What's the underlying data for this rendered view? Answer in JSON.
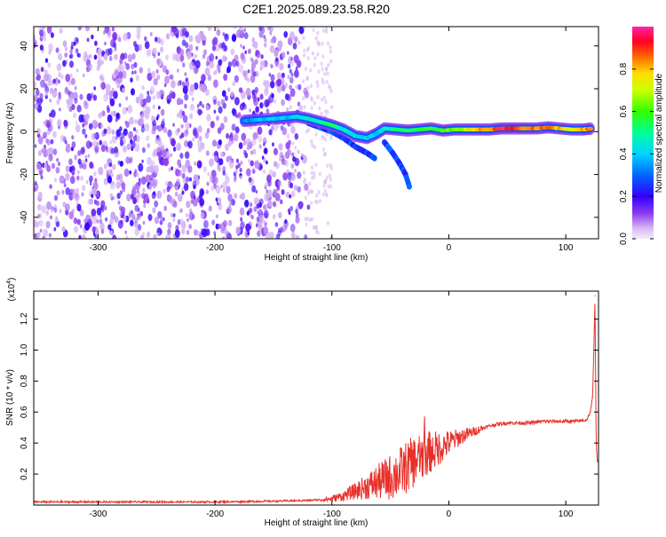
{
  "title": "C2E1.2025.089.23.58.R20",
  "chart_data": [
    {
      "type": "heatmap",
      "xlabel": "Height of straight line (km)",
      "ylabel": "Frequency (Hz)",
      "xlim": [
        -355,
        128
      ],
      "ylim": [
        -50,
        49
      ],
      "xticks": [
        -300,
        -200,
        -100,
        0,
        100
      ],
      "yticks": [
        -40,
        -20,
        0,
        20,
        40
      ],
      "colorbar": {
        "label": "Normalized spectral amplitude",
        "range": [
          0,
          1
        ],
        "ticks": [
          "0.0",
          "0.2",
          "0.4",
          "0.6",
          "0.8"
        ],
        "tick_values": [
          0,
          0.2,
          0.4,
          0.6,
          0.8
        ]
      },
      "ridge": [
        [
          -175,
          5,
          0.35
        ],
        [
          -165,
          5.5,
          0.4
        ],
        [
          -150,
          6,
          0.45
        ],
        [
          -140,
          6.5,
          0.4
        ],
        [
          -130,
          7,
          0.45
        ],
        [
          -120,
          6,
          0.5
        ],
        [
          -110,
          4.5,
          0.5
        ],
        [
          -100,
          3,
          0.55
        ],
        [
          -90,
          1,
          0.5
        ],
        [
          -80,
          -2,
          0.45
        ],
        [
          -70,
          -3,
          0.45
        ],
        [
          -62,
          -1,
          0.4
        ],
        [
          -55,
          1.5,
          0.5
        ],
        [
          -45,
          1,
          0.55
        ],
        [
          -35,
          0.5,
          0.55
        ],
        [
          -25,
          1,
          0.6
        ],
        [
          -15,
          1.5,
          0.6
        ],
        [
          -5,
          0.5,
          0.65
        ],
        [
          5,
          1,
          0.7
        ],
        [
          15,
          1,
          0.75
        ],
        [
          25,
          1,
          0.85
        ],
        [
          35,
          1,
          0.95
        ],
        [
          45,
          1.5,
          1.0
        ],
        [
          55,
          1.5,
          0.98
        ],
        [
          65,
          1.5,
          0.95
        ],
        [
          75,
          1.5,
          0.9
        ],
        [
          85,
          2,
          0.9
        ],
        [
          95,
          1.5,
          0.85
        ],
        [
          105,
          1,
          0.8
        ],
        [
          115,
          1,
          0.85
        ],
        [
          123,
          1.5,
          0.9
        ]
      ],
      "branches": [
        [
          [
            -120,
            4
          ],
          [
            -110,
            2
          ],
          [
            -100,
            0
          ],
          [
            -90,
            -3
          ],
          [
            -80,
            -7
          ],
          [
            -70,
            -10
          ],
          [
            -62,
            -13
          ]
        ],
        [
          [
            -55,
            -5
          ],
          [
            -48,
            -10
          ],
          [
            -42,
            -15
          ],
          [
            -37,
            -20
          ],
          [
            -33,
            -27
          ]
        ]
      ]
    },
    {
      "type": "line",
      "xlabel": "Height of straight line (km)",
      "ylabel": "SNR (10 * v/v)",
      "multiplier": "(x10",
      "multiplier_exp": "4",
      "xlim": [
        -355,
        128
      ],
      "ylim": [
        0,
        1.38
      ],
      "xticks": [
        -300,
        -200,
        -100,
        0,
        100
      ],
      "yticks": [
        0.2,
        0.4,
        0.6,
        0.8,
        1.0,
        1.2
      ],
      "ytick_labels": [
        "0.2",
        "0.4",
        "0.6",
        "0.8",
        "1.0",
        "1.2"
      ],
      "series": [
        {
          "color": "#e8302a",
          "x": [
            -355,
            -300,
            -250,
            -200,
            -150,
            -120,
            -100,
            -90,
            -80,
            -70,
            -60,
            -50,
            -40,
            -30,
            -20,
            -10,
            0,
            10,
            20,
            30,
            40,
            50,
            60,
            70,
            80,
            90,
            100,
            110,
            118,
            121,
            123,
            124,
            125,
            126,
            127
          ],
          "y": [
            0.02,
            0.02,
            0.02,
            0.02,
            0.025,
            0.03,
            0.04,
            0.06,
            0.09,
            0.12,
            0.15,
            0.18,
            0.22,
            0.28,
            0.33,
            0.36,
            0.4,
            0.44,
            0.47,
            0.5,
            0.52,
            0.53,
            0.53,
            0.53,
            0.54,
            0.54,
            0.54,
            0.54,
            0.55,
            0.6,
            0.7,
            1.0,
            1.35,
            0.4,
            0.28
          ]
        }
      ]
    }
  ]
}
